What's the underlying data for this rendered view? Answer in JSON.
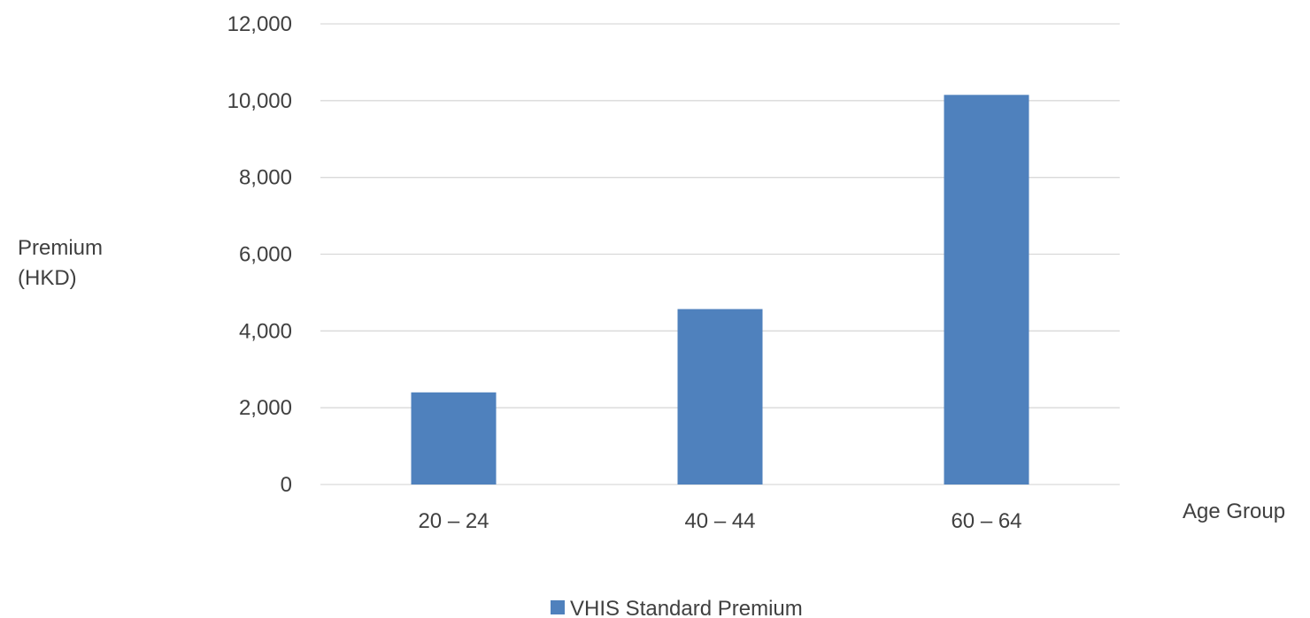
{
  "chart_data": {
    "type": "bar",
    "categories": [
      "20 – 24",
      "40 – 44",
      "60 – 64"
    ],
    "series": [
      {
        "name": "VHIS Standard Premium",
        "values": [
          2400,
          4570,
          10150
        ],
        "color": "#4f81bd"
      }
    ],
    "ylabel_lines": [
      "Premium",
      "(HKD)"
    ],
    "xlabel": "Age Group",
    "ylim": [
      0,
      12000
    ],
    "yticks": [
      0,
      2000,
      4000,
      6000,
      8000,
      10000,
      12000
    ],
    "ytick_labels": [
      "0",
      "2,000",
      "4,000",
      "6,000",
      "8,000",
      "10,000",
      "12,000"
    ],
    "grid": true,
    "gridline_color": "#d9d9d9",
    "legend_position": "bottom-center"
  }
}
